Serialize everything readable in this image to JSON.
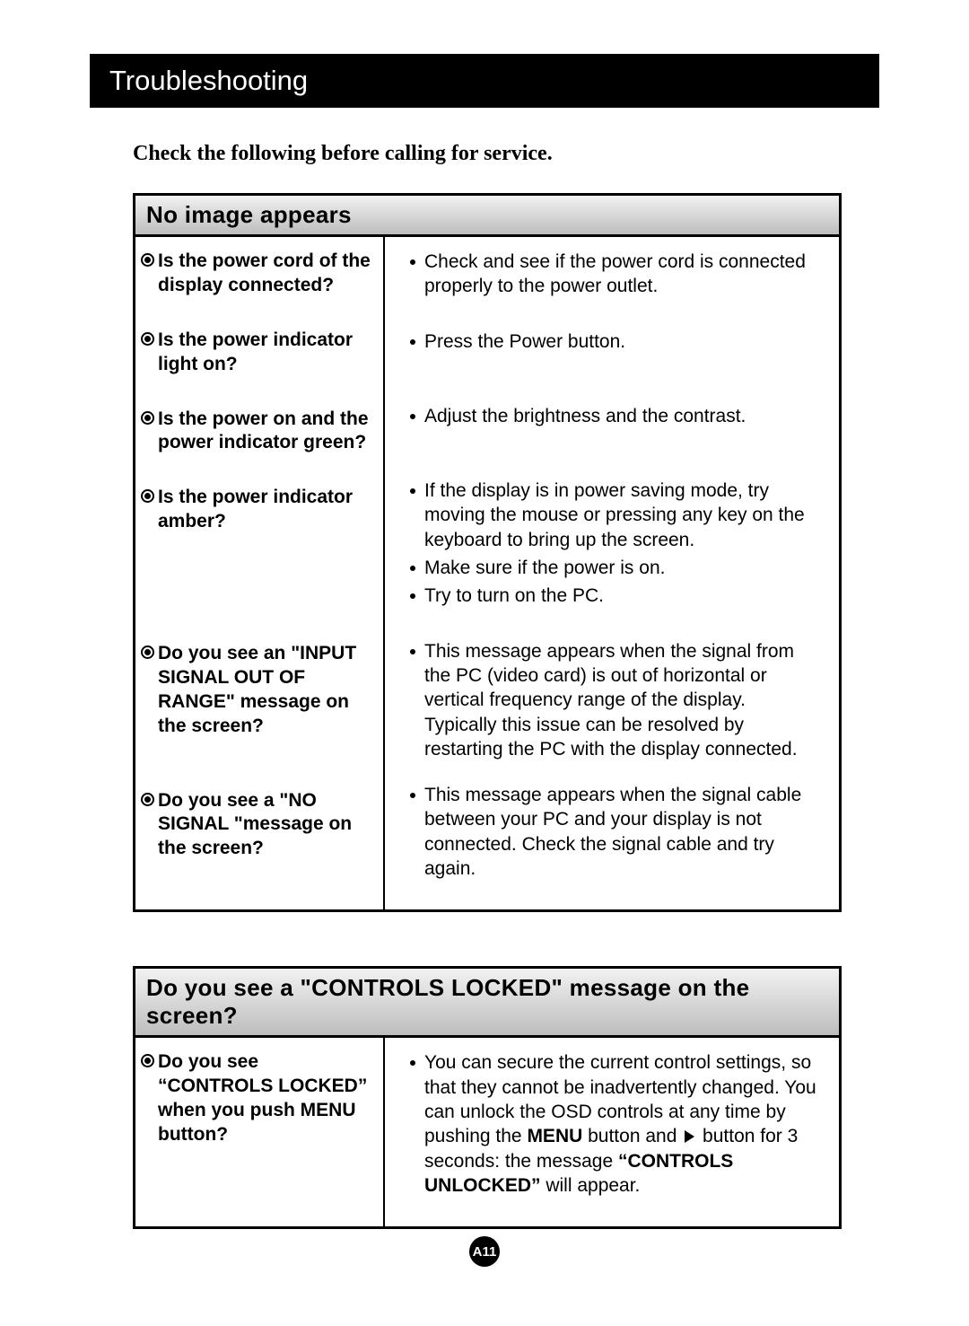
{
  "title": "Troubleshooting",
  "intro": "Check the following before calling for service.",
  "page_number": "A11",
  "section1": {
    "header": "No image appears",
    "q1": "Is the power cord of the display connected?",
    "a1": "Check and see if the power cord is connected properly to the power outlet.",
    "q2": "Is the power indicator light on?",
    "a2": "Press the Power button.",
    "q3": "Is the power on and the power indicator green?",
    "a3": "Adjust the brightness and the contrast.",
    "q4": "Is the power indicator amber?",
    "a4a": "If the display is in power saving mode, try moving the mouse or pressing any key on the keyboard to bring up the screen.",
    "a4b": "Make sure if the power is on.",
    "a4c": "Try to turn on the PC.",
    "q5": "Do you see an \"INPUT SIGNAL OUT OF RANGE\" message on the screen?",
    "a5": "This message appears when the signal from the PC (video card) is out of horizontal or vertical frequency range of the display. Typically this issue can be resolved by restarting the PC with the display connected.",
    "q6": "Do you see a \"NO SIGNAL \"message on the screen?",
    "a6": "This message appears when the signal cable between your PC and your display is not connected. Check the signal cable and try again."
  },
  "section2": {
    "header": "Do you see a \"CONTROLS LOCKED\" message on the screen?",
    "q1": "Do you see “CONTROLS LOCKED” when you push MENU button?",
    "a1_pre": "You can secure the current control settings, so that they cannot be inadvertently changed. You can unlock the OSD controls at any time by pushing the ",
    "a1_menu": "MENU",
    "a1_mid": " button and  ",
    "a1_post": " button for 3 seconds: the message ",
    "a1_unlocked": "“CONTROLS UNLOCKED”",
    "a1_end": " will appear."
  }
}
